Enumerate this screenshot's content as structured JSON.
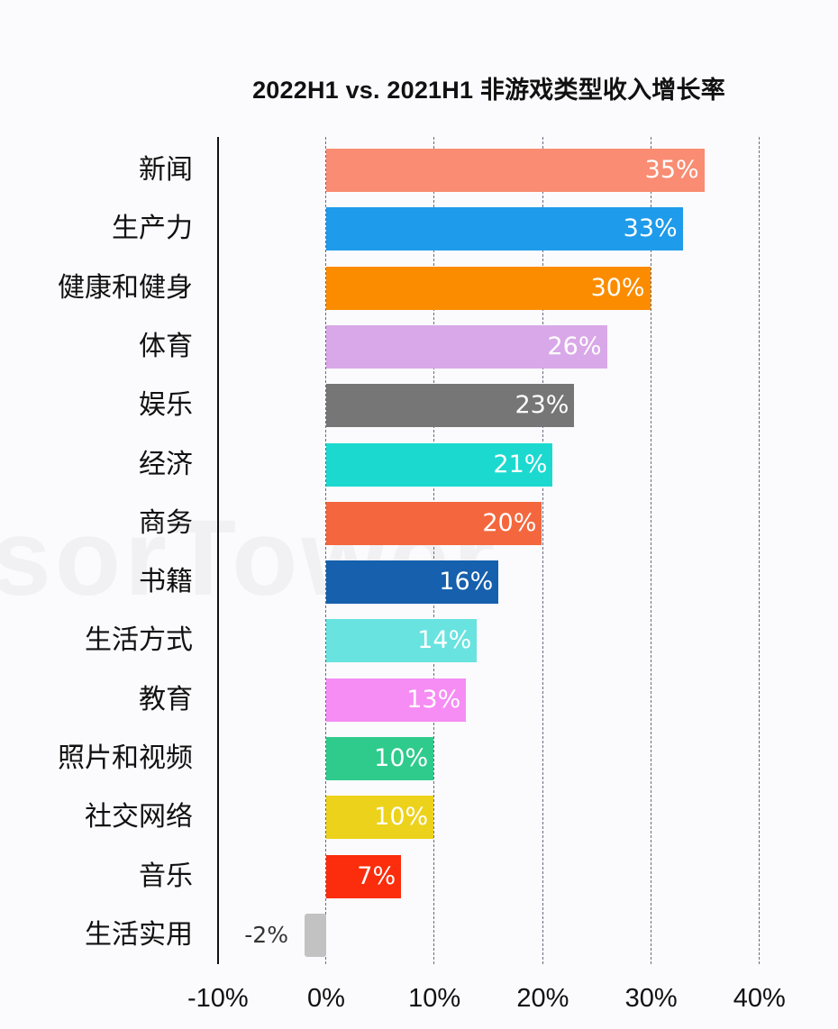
{
  "chart_data": {
    "type": "bar",
    "orientation": "horizontal",
    "title": "2022H1 vs. 2021H1 非游戏类型收入增长率",
    "xlabel": "",
    "ylabel": "",
    "xlim": [
      -10,
      40
    ],
    "xticks": [
      "-10%",
      "0%",
      "10%",
      "20%",
      "30%",
      "40%"
    ],
    "grid": "vertical dashed",
    "categories": [
      "新闻",
      "生产力",
      "健康和健身",
      "体育",
      "娱乐",
      "经济",
      "商务",
      "书籍",
      "生活方式",
      "教育",
      "照片和视频",
      "社交网络",
      "音乐",
      "生活实用"
    ],
    "values": [
      35,
      33,
      30,
      26,
      23,
      21,
      20,
      16,
      14,
      13,
      10,
      10,
      7,
      -2
    ],
    "value_labels": [
      "35%",
      "33%",
      "30%",
      "26%",
      "23%",
      "21%",
      "20%",
      "16%",
      "14%",
      "13%",
      "10%",
      "10%",
      "7%",
      "-2%"
    ],
    "colors": [
      "#f98c72",
      "#1e9bea",
      "#fb8c00",
      "#d9a8e8",
      "#767676",
      "#1cd9cf",
      "#f4673e",
      "#1660ad",
      "#68e3e0",
      "#f68df4",
      "#2fcb8c",
      "#ecd21b",
      "#fb2d0c",
      "#c2c2c2"
    ]
  },
  "watermark": "sorTower"
}
